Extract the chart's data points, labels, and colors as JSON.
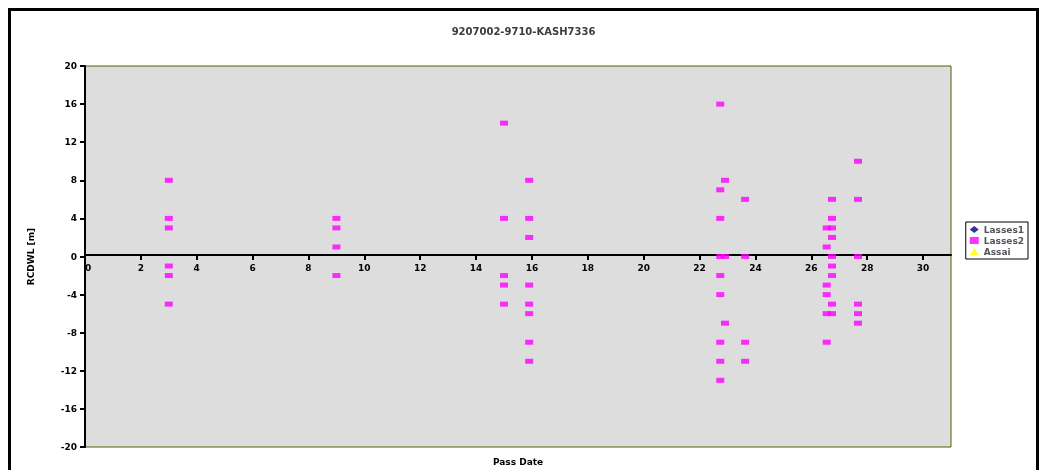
{
  "chart_data": {
    "type": "scatter",
    "title": "9207002-9710-KASH7336",
    "xlabel": "Pass Date",
    "ylabel": "RCDWL [m]",
    "xlim": [
      0,
      31
    ],
    "xticks": [
      0,
      2,
      4,
      6,
      8,
      10,
      12,
      14,
      16,
      18,
      20,
      22,
      24,
      26,
      28,
      30
    ],
    "ylim": [
      -20,
      20
    ],
    "yticks": [
      -20,
      -16,
      -12,
      -8,
      -4,
      0,
      4,
      8,
      12,
      16,
      20
    ],
    "grid": false,
    "legend": "right",
    "series": [
      {
        "name": "Lasses1",
        "color": "#000080",
        "marker": "diamond"
      },
      {
        "name": "Lasses2",
        "color": "#ff00ff",
        "marker": "square",
        "x": [
          3,
          3,
          3,
          3,
          3,
          3,
          9,
          9,
          9,
          9,
          15,
          15,
          15,
          15,
          15,
          15.9,
          15.9,
          15.9,
          15.9,
          15.9,
          15.9,
          15.9,
          15.9,
          22.74,
          22.74,
          22.74,
          22.74,
          22.74,
          22.74,
          22.74,
          22.74,
          22.74,
          22.91,
          22.91,
          22.91,
          23.63,
          23.63,
          23.63,
          23.63,
          26.55,
          26.55,
          26.55,
          26.55,
          26.55,
          26.55,
          26.74,
          26.74,
          26.74,
          26.74,
          26.74,
          26.74,
          26.74,
          26.74,
          26.74,
          27.67,
          27.67,
          27.67,
          27.67,
          27.67,
          27.67
        ],
        "values": [
          8,
          4,
          3,
          -1,
          -2,
          -5,
          4,
          3,
          1,
          -2,
          14,
          4,
          -2,
          -3,
          -5,
          8,
          4,
          2,
          -3,
          -5,
          -6,
          -9,
          -11,
          16,
          7,
          4,
          0,
          -2,
          -4,
          -9,
          -11,
          -13,
          8,
          0,
          -7,
          6,
          0,
          -9,
          -11,
          3,
          1,
          -3,
          -4,
          -6,
          -9,
          6,
          4,
          3,
          2,
          0,
          -1,
          -2,
          -5,
          -6,
          10,
          6,
          0,
          -5,
          -6,
          -7
        ]
      },
      {
        "name": "Assai",
        "color": "#ffff00",
        "marker": "triangle"
      }
    ]
  }
}
